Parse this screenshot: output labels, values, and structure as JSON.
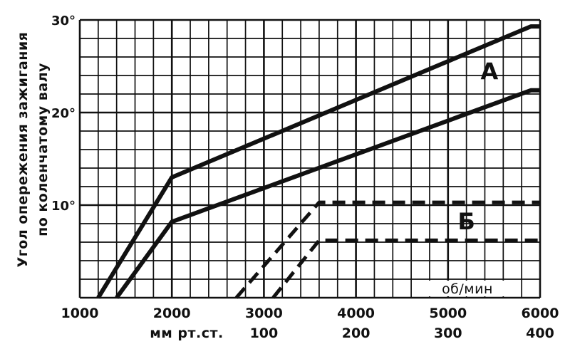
{
  "chart_data": {
    "type": "line",
    "ylabel_line1": "Угол опережения зажигания",
    "ylabel_line2": "по коленчатому валу",
    "x_unit_label": "об/мин",
    "x2_label": "мм рт.ст.",
    "xlim": [
      1000,
      6000
    ],
    "ylim": [
      0,
      30
    ],
    "grid": true,
    "x_ticks": [
      "1000",
      "2000",
      "3000",
      "4000",
      "5000",
      "6000"
    ],
    "x_tick_values": [
      1000,
      2000,
      3000,
      4000,
      5000,
      6000
    ],
    "x2_ticks": [
      "100",
      "200",
      "300",
      "400"
    ],
    "x2_tick_values": [
      3000,
      4000,
      5000,
      6000
    ],
    "y_ticks": [
      "10°",
      "20°",
      "30°"
    ],
    "y_tick_values": [
      10,
      20,
      30
    ],
    "group_labels": [
      {
        "text": "А",
        "x": 5450,
        "y": 24.5
      },
      {
        "text": "Б",
        "x": 5200,
        "y": 8.3
      }
    ],
    "series": [
      {
        "group": "А",
        "style": "solid",
        "x": [
          1200,
          2000,
          5900,
          6000
        ],
        "y": [
          0,
          13,
          29.3,
          29.3
        ]
      },
      {
        "group": "А",
        "style": "solid",
        "x": [
          1400,
          2000,
          5900,
          6000
        ],
        "y": [
          0,
          8.2,
          22.4,
          22.4
        ]
      },
      {
        "group": "Б",
        "style": "dashed",
        "x": [
          2700,
          3600,
          6000
        ],
        "y": [
          0,
          10.3,
          10.3
        ]
      },
      {
        "group": "Б",
        "style": "dashed",
        "x": [
          3100,
          3600,
          6000
        ],
        "y": [
          0,
          6.2,
          6.2
        ]
      }
    ]
  }
}
